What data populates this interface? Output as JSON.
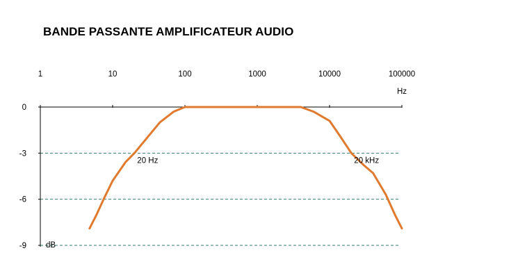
{
  "chart_data": {
    "type": "line",
    "title": "BANDE PASSANTE AMPLIFICATEUR AUDIO",
    "x_scale": "log",
    "x_unit": "Hz",
    "y_unit": "dB",
    "x_ticks": [
      {
        "value": 1,
        "label": "1"
      },
      {
        "value": 10,
        "label": "10"
      },
      {
        "value": 100,
        "label": "100"
      },
      {
        "value": 1000,
        "label": "1000"
      },
      {
        "value": 10000,
        "label": "10000"
      },
      {
        "value": 100000,
        "label": "100000"
      }
    ],
    "y_ticks": [
      {
        "value": 0,
        "label": "0"
      },
      {
        "value": -3,
        "label": "-3"
      },
      {
        "value": -6,
        "label": "-6"
      },
      {
        "value": -9,
        "label": "-9"
      }
    ],
    "xlim": [
      1,
      100000
    ],
    "ylim": [
      -9,
      0
    ],
    "grid": "dashed horizontal lines at -3, -6 and -9 dB",
    "annotations": [
      {
        "label": "20 Hz",
        "x": 20,
        "y": -3
      },
      {
        "label": "20 kHz",
        "x": 20000,
        "y": -3
      }
    ],
    "series": [
      {
        "color": "#e07a2e",
        "points": [
          {
            "x": 4.8,
            "y": -7.9
          },
          {
            "x": 6,
            "y": -7.0
          },
          {
            "x": 7.5,
            "y": -6.0
          },
          {
            "x": 10,
            "y": -4.8
          },
          {
            "x": 15,
            "y": -3.6
          },
          {
            "x": 20,
            "y": -3.0
          },
          {
            "x": 30,
            "y": -2.0
          },
          {
            "x": 45,
            "y": -1.0
          },
          {
            "x": 70,
            "y": -0.3
          },
          {
            "x": 100,
            "y": 0
          },
          {
            "x": 1000,
            "y": 0
          },
          {
            "x": 4000,
            "y": 0
          },
          {
            "x": 6000,
            "y": -0.3
          },
          {
            "x": 10000,
            "y": -0.9
          },
          {
            "x": 14000,
            "y": -1.9
          },
          {
            "x": 20000,
            "y": -3.0
          },
          {
            "x": 30000,
            "y": -3.8
          },
          {
            "x": 40000,
            "y": -4.3
          },
          {
            "x": 60000,
            "y": -5.7
          },
          {
            "x": 80000,
            "y": -7.0
          },
          {
            "x": 100000,
            "y": -7.9
          }
        ]
      }
    ]
  }
}
